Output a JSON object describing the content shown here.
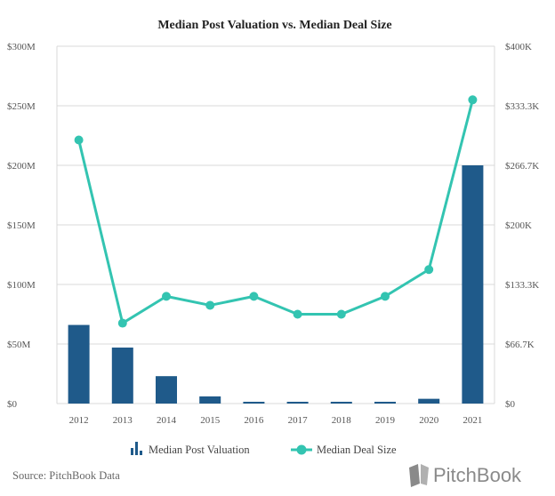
{
  "chart_data": {
    "type": "bar+line",
    "title": "Median Post Valuation vs. Median Deal Size",
    "categories": [
      "2012",
      "2013",
      "2014",
      "2015",
      "2016",
      "2017",
      "2018",
      "2019",
      "2020",
      "2021"
    ],
    "series": [
      {
        "name": "Median Post Valuation",
        "type": "bar",
        "axis": "left",
        "color": "#1f5a8a",
        "values": [
          66,
          47,
          23,
          6,
          1.5,
          1.5,
          1.5,
          1.5,
          4,
          200
        ]
      },
      {
        "name": "Median Deal Size",
        "type": "line",
        "axis": "right",
        "color": "#33c4b1",
        "values": [
          295,
          90,
          120,
          110,
          120,
          100,
          100,
          120,
          150,
          340
        ]
      }
    ],
    "left_axis": {
      "unit": "$M",
      "ylim": [
        0,
        300
      ],
      "ticks": [
        0,
        50,
        100,
        150,
        200,
        250,
        300
      ],
      "tick_labels": [
        "$0",
        "$50M",
        "$100M",
        "$150M",
        "$200M",
        "$250M",
        "$300M"
      ]
    },
    "right_axis": {
      "unit": "$K",
      "ylim": [
        0,
        400
      ],
      "ticks": [
        0,
        66.7,
        133.3,
        200,
        266.7,
        333.3,
        400
      ],
      "tick_labels": [
        "$0",
        "$66.7K",
        "$133.3K",
        "$200K",
        "$266.7K",
        "$333.3K",
        "$400K"
      ]
    },
    "grid": true,
    "legend_position": "bottom"
  },
  "footer": {
    "source": "Source: PitchBook Data",
    "brand": "PitchBook"
  },
  "colors": {
    "bar": "#1f5a8a",
    "line": "#33c4b1",
    "grid": "#d9d9d9",
    "logo": "#8a8a8a"
  }
}
